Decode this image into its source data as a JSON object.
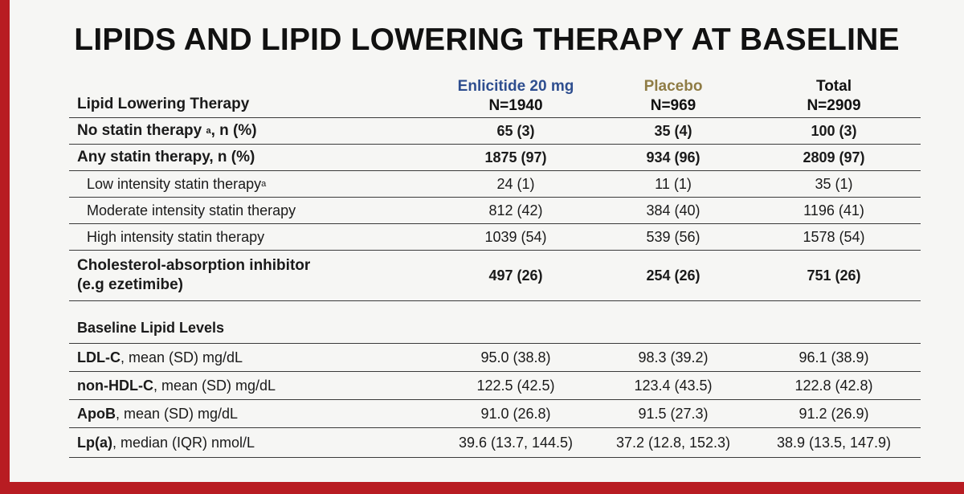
{
  "title": "LIPIDS AND LIPID LOWERING THERAPY AT BASELINE",
  "columns": [
    {
      "name": "Enlicitide 20 mg",
      "n": "N=1940",
      "color": "#2e4e8f"
    },
    {
      "name": "Placebo",
      "n": "N=969",
      "color": "#8f7c45"
    },
    {
      "name": "Total",
      "n": "N=2909",
      "color": "#111111"
    }
  ],
  "therapy_header": "Lipid Lowering Therapy",
  "therapy_rows": [
    {
      "label": "No statin therapy",
      "sup": "a",
      "suffix": ", n (%)",
      "values": [
        "65 (3)",
        "35 (4)",
        "100 (3)"
      ]
    },
    {
      "label": "Any statin therapy, n (%)",
      "values": [
        "1875 (97)",
        "934 (96)",
        "2809 (97)"
      ]
    },
    {
      "label": "Low intensity statin therapy",
      "sup": "a",
      "values": [
        "24 (1)",
        "11 (1)",
        "35 (1)"
      ]
    },
    {
      "label": "Moderate intensity statin therapy",
      "values": [
        "812 (42)",
        "384 (40)",
        "1196 (41)"
      ]
    },
    {
      "label": "High intensity statin therapy",
      "values": [
        "1039 (54)",
        "539 (56)",
        "1578 (54)"
      ]
    },
    {
      "label_line1": "Cholesterol-absorption inhibitor",
      "label_line2": "(e.g ezetimibe)",
      "values": [
        "497 (26)",
        "254 (26)",
        "751 (26)"
      ]
    }
  ],
  "lipid_header": "Baseline Lipid Levels",
  "lipid_rows": [
    {
      "name": "LDL-C",
      "desc": ", mean (SD) mg/dL",
      "values": [
        "95.0 (38.8)",
        "98.3 (39.2)",
        "96.1 (38.9)"
      ]
    },
    {
      "name": "non-HDL-C",
      "desc": ", mean (SD) mg/dL",
      "values": [
        "122.5 (42.5)",
        "123.4 (43.5)",
        "122.8 (42.8)"
      ]
    },
    {
      "name": "ApoB",
      "desc": ", mean (SD) mg/dL",
      "values": [
        "91.0 (26.8)",
        "91.5 (27.3)",
        "91.2 (26.9)"
      ]
    },
    {
      "name": "Lp(a)",
      "desc": ", median (IQR) nmol/L",
      "values": [
        "39.6 (13.7, 144.5)",
        "37.2 (12.8, 152.3)",
        "38.9 (13.5, 147.9)"
      ]
    }
  ]
}
